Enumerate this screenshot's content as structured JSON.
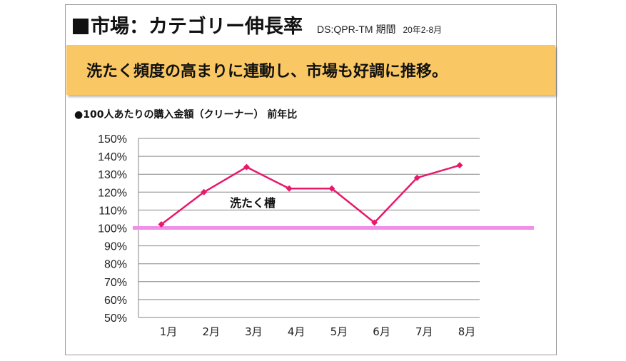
{
  "header": {
    "title": "市場：カテゴリー伸長率",
    "source": "DS:QPR-TM 期間",
    "period": "20年2-8月"
  },
  "banner": {
    "text": "洗たく頻度の高まりに連動し、市場も好調に推移。"
  },
  "colors": {
    "banner_bg": "#f9c763",
    "series_line": "#e8196b",
    "reference_line": "#f08ee8",
    "grid": "#868686"
  },
  "chart_data": {
    "type": "line",
    "title": "●100人あたりの購入金額（クリーナー） 前年比",
    "categories": [
      "1月",
      "2月",
      "3月",
      "4月",
      "5月",
      "6月",
      "7月",
      "8月"
    ],
    "series": [
      {
        "name": "洗たく槽",
        "values": [
          102,
          120,
          134,
          122,
          122,
          103,
          128,
          135
        ]
      }
    ],
    "reference_line": 100,
    "ylim": [
      50,
      150
    ],
    "yticks": [
      150,
      140,
      130,
      120,
      110,
      100,
      90,
      80,
      70,
      60,
      50
    ],
    "ytick_labels": [
      "150%",
      "140%",
      "130%",
      "120%",
      "110%",
      "100%",
      "90%",
      "80%",
      "70%",
      "60%",
      "50%"
    ],
    "ylabel": "",
    "xlabel": "",
    "grid": true,
    "legend": "none",
    "annotation": "洗たく槽"
  }
}
